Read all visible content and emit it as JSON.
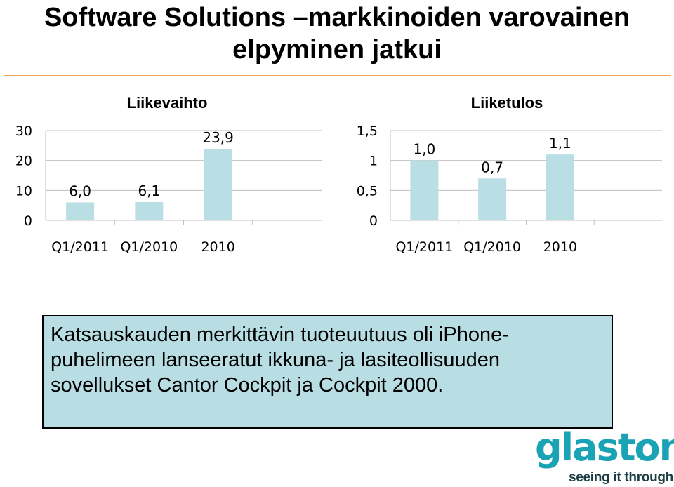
{
  "slide": {
    "title": "Software Solutions –markkinoiden varovainen elpyminen jatkui",
    "callout": "Katsauskauden merkittävin tuoteuutuus oli iPhone-puhelimeen lanseeratut ikkuna- ja lasiteollisuuden sovellukset Cantor Cockpit ja Cockpit 2000.",
    "logo": {
      "word": "glaston",
      "tagline": "seeing it through",
      "color": "#1aa3b4"
    }
  },
  "chart_data": [
    {
      "type": "bar",
      "title": "Liikevaihto",
      "categories": [
        "Q1/2011",
        "Q1/2010",
        "2010"
      ],
      "values": [
        6.0,
        6.1,
        23.9
      ],
      "value_labels": [
        "6,0",
        "6,1",
        "23,9"
      ],
      "ylim": [
        0,
        30
      ],
      "yticks": [
        "0",
        "10",
        "20",
        "30"
      ],
      "grid": true,
      "bar_color": "#b9dfe4"
    },
    {
      "type": "bar",
      "title": "Liiketulos",
      "categories": [
        "Q1/2011",
        "Q1/2010",
        "2010"
      ],
      "values": [
        1.0,
        0.7,
        1.1
      ],
      "value_labels": [
        "1,0",
        "0,7",
        "1,1"
      ],
      "ylim": [
        0,
        1.5
      ],
      "yticks": [
        "0",
        "0,5",
        "1",
        "1,5"
      ],
      "grid": true,
      "bar_color": "#b9dfe4"
    }
  ]
}
